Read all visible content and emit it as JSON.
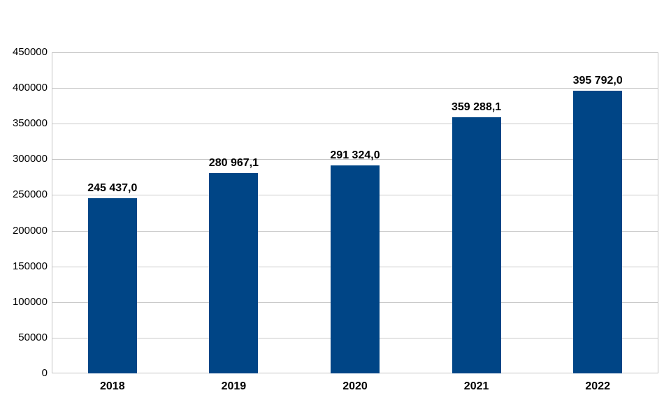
{
  "chart_data": {
    "type": "bar",
    "title": "",
    "xlabel": "",
    "ylabel": "",
    "categories": [
      "2018",
      "2019",
      "2020",
      "2021",
      "2022"
    ],
    "values": [
      245437.0,
      280967.1,
      291324.0,
      359288.1,
      395792.0
    ],
    "value_labels": [
      "245 437,0",
      "280 967,1",
      "291 324,0",
      "359 288,1",
      "395 792,0"
    ],
    "ylim": [
      0,
      450000
    ],
    "ytick_step": 50000,
    "ytick_labels": [
      "0",
      "50000",
      "100000",
      "150000",
      "200000",
      "250000",
      "300000",
      "350000",
      "400000",
      "450000"
    ],
    "grid": "horizontal",
    "legend": "none",
    "colors": {
      "bar_fill": "#004586",
      "gridline": "#c9c9c9",
      "plot_border": "#c3c3c3",
      "label_text": "#000000",
      "background": "#ffffff"
    }
  }
}
